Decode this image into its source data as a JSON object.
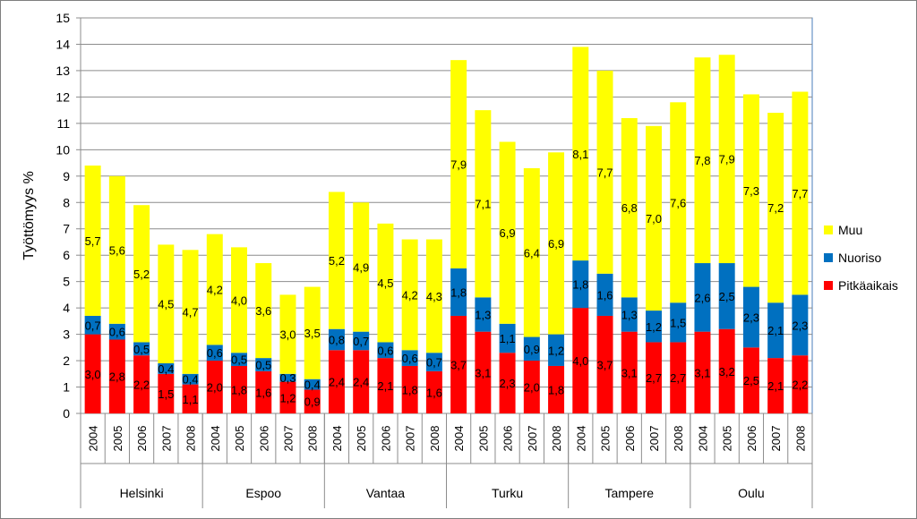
{
  "chart_data": {
    "type": "bar",
    "stacked": true,
    "ylabel": "Työttömyys %",
    "ylim": [
      0,
      15
    ],
    "ytick_step": 1,
    "grid": true,
    "legend_position": "right",
    "groups": [
      {
        "name": "Helsinki",
        "years": [
          "2004",
          "2005",
          "2006",
          "2007",
          "2008"
        ]
      },
      {
        "name": "Espoo",
        "years": [
          "2004",
          "2005",
          "2006",
          "2007",
          "2008"
        ]
      },
      {
        "name": "Vantaa",
        "years": [
          "2004",
          "2005",
          "2006",
          "2007",
          "2008"
        ]
      },
      {
        "name": "Turku",
        "years": [
          "2004",
          "2005",
          "2006",
          "2007",
          "2008"
        ]
      },
      {
        "name": "Tampere",
        "years": [
          "2004",
          "2005",
          "2006",
          "2007",
          "2008"
        ]
      },
      {
        "name": "Oulu",
        "years": [
          "2004",
          "2005",
          "2006",
          "2007",
          "2008"
        ]
      }
    ],
    "series": [
      {
        "name": "Pitkäaikais",
        "color": "#ff0000",
        "values": [
          3.0,
          2.8,
          2.2,
          1.5,
          1.1,
          2.0,
          1.8,
          1.6,
          1.2,
          0.9,
          2.4,
          2.4,
          2.1,
          1.8,
          1.6,
          3.7,
          3.1,
          2.3,
          2.0,
          1.8,
          4.0,
          3.7,
          3.1,
          2.7,
          2.7,
          3.1,
          3.2,
          2.5,
          2.1,
          2.2
        ]
      },
      {
        "name": "Nuoriso",
        "color": "#0070c0",
        "values": [
          0.7,
          0.6,
          0.5,
          0.4,
          0.4,
          0.6,
          0.5,
          0.5,
          0.3,
          0.4,
          0.8,
          0.7,
          0.6,
          0.6,
          0.7,
          1.8,
          1.3,
          1.1,
          0.9,
          1.2,
          1.8,
          1.6,
          1.3,
          1.2,
          1.5,
          2.6,
          2.5,
          2.3,
          2.1,
          2.3
        ]
      },
      {
        "name": "Muu",
        "color": "#ffff00",
        "values": [
          5.7,
          5.6,
          5.2,
          4.5,
          4.7,
          4.2,
          4.0,
          3.6,
          3.0,
          3.5,
          5.2,
          4.9,
          4.5,
          4.2,
          4.3,
          7.9,
          7.1,
          6.9,
          6.4,
          6.9,
          8.1,
          7.7,
          6.8,
          7.0,
          7.6,
          7.8,
          7.9,
          7.3,
          7.2,
          7.7
        ]
      }
    ]
  }
}
